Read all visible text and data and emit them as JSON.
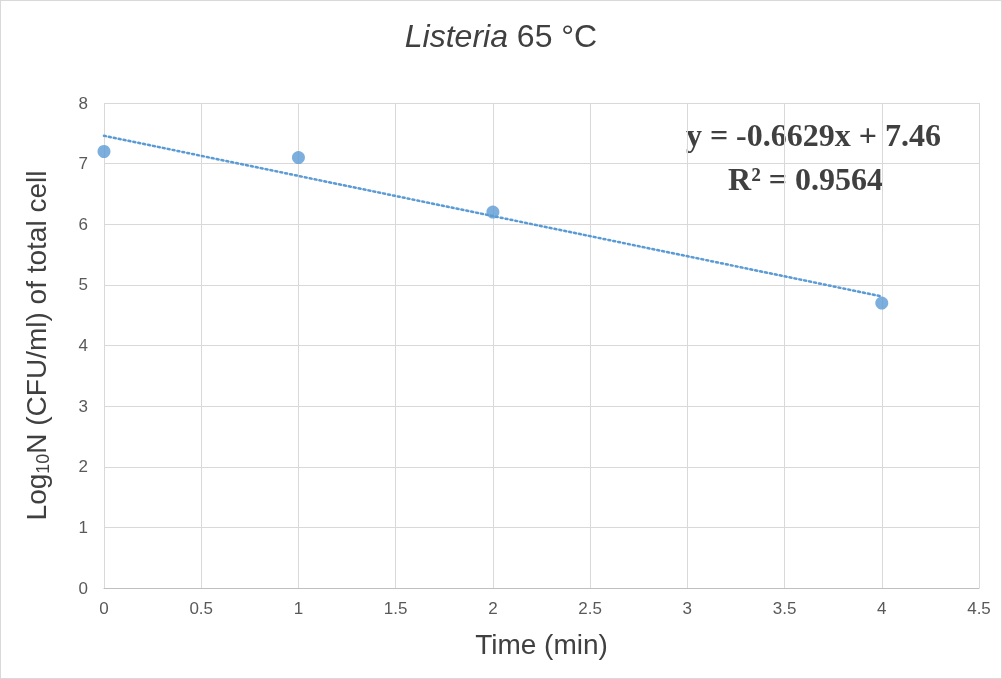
{
  "chart_data": {
    "type": "scatter",
    "title": "Listeria 65 °C",
    "xlabel": "Time (min)",
    "ylabel": "Log$_{10}$N (CFU/ml) of total cell",
    "x": [
      0,
      1,
      2,
      4
    ],
    "series": [
      {
        "color": "#5b9bd5",
        "values": [
          7.2,
          7.1,
          6.2,
          4.7
        ],
        "marker": "circle"
      },
      {
        "type": "line",
        "color": "#5b9bd5",
        "x": [
          0,
          4
        ],
        "values": [
          7.46,
          4.81
        ],
        "line_style": "dotted",
        "marker": "none"
      }
    ],
    "xlim": [
      0,
      4.5
    ],
    "xticks": [
      0,
      0.5,
      1,
      1.5,
      2,
      2.5,
      3,
      3.5,
      4,
      4.5
    ],
    "ylim": [
      0,
      8
    ],
    "yticks": [
      0,
      1,
      2,
      3,
      4,
      5,
      6,
      7,
      8
    ],
    "grid": true,
    "annotations": [
      "y = -0.6629x + 7.46",
      "R² = 0.9564"
    ]
  }
}
